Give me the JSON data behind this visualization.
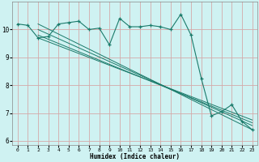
{
  "xlabel": "Humidex (Indice chaleur)",
  "bg_color": "#cff2f2",
  "plot_bg_color": "#cff2f2",
  "grid_color": "#d4aaaa",
  "line_color": "#1a7a6a",
  "xlim": [
    -0.5,
    23.5
  ],
  "ylim": [
    5.85,
    11.0
  ],
  "yticks": [
    6,
    7,
    8,
    9,
    10
  ],
  "xticks": [
    0,
    1,
    2,
    3,
    4,
    5,
    6,
    7,
    8,
    9,
    10,
    11,
    12,
    13,
    14,
    15,
    16,
    17,
    18,
    19,
    20,
    21,
    22,
    23
  ],
  "series": [
    [
      0,
      10.2
    ],
    [
      1,
      10.15
    ],
    [
      2,
      9.7
    ],
    [
      3,
      9.75
    ],
    [
      4,
      10.2
    ],
    [
      5,
      10.25
    ],
    [
      6,
      10.3
    ],
    [
      7,
      10.0
    ],
    [
      8,
      10.05
    ],
    [
      9,
      9.45
    ],
    [
      10,
      10.4
    ],
    [
      11,
      10.1
    ],
    [
      12,
      10.1
    ],
    [
      13,
      10.15
    ],
    [
      14,
      10.1
    ],
    [
      15,
      10.0
    ],
    [
      16,
      10.55
    ],
    [
      17,
      9.8
    ],
    [
      18,
      8.25
    ],
    [
      19,
      6.9
    ],
    [
      20,
      7.05
    ],
    [
      21,
      7.3
    ],
    [
      22,
      6.7
    ],
    [
      23,
      6.4
    ]
  ],
  "trend_lines": [
    [
      [
        2,
        10.2
      ],
      [
        23,
        6.4
      ]
    ],
    [
      [
        2,
        10.0
      ],
      [
        23,
        6.55
      ]
    ],
    [
      [
        2,
        9.8
      ],
      [
        23,
        6.65
      ]
    ],
    [
      [
        2,
        9.7
      ],
      [
        23,
        6.75
      ]
    ]
  ]
}
